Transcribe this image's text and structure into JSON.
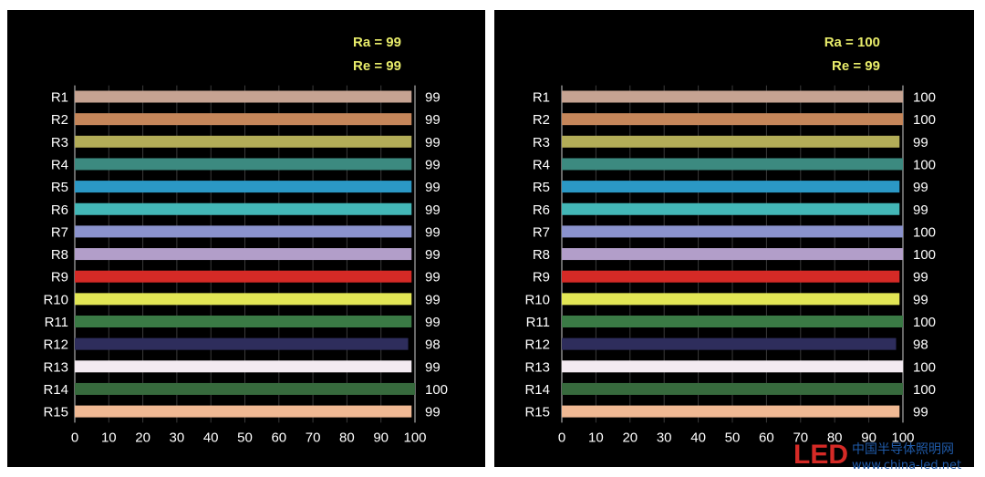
{
  "chart_data": [
    {
      "type": "bar",
      "orientation": "horizontal",
      "annotations": [
        "Ra = 99",
        "Re = 99"
      ],
      "categories": [
        "R1",
        "R2",
        "R3",
        "R4",
        "R5",
        "R6",
        "R7",
        "R8",
        "R9",
        "R10",
        "R11",
        "R12",
        "R13",
        "R14",
        "R15"
      ],
      "values": [
        99,
        99,
        99,
        99,
        99,
        99,
        99,
        99,
        99,
        99,
        99,
        98,
        99,
        100,
        99
      ],
      "xlim": [
        0,
        100
      ],
      "xticks": [
        "0",
        "10",
        "20",
        "30",
        "40",
        "50",
        "60",
        "70",
        "80",
        "90",
        "100"
      ],
      "grid": true
    },
    {
      "type": "bar",
      "orientation": "horizontal",
      "annotations": [
        "Ra = 100",
        "Re = 99"
      ],
      "categories": [
        "R1",
        "R2",
        "R3",
        "R4",
        "R5",
        "R6",
        "R7",
        "R8",
        "R9",
        "R10",
        "R11",
        "R12",
        "R13",
        "R14",
        "R15"
      ],
      "values": [
        100,
        100,
        99,
        100,
        99,
        99,
        100,
        100,
        99,
        99,
        100,
        98,
        100,
        100,
        99
      ],
      "xlim": [
        0,
        100
      ],
      "xticks": [
        "0",
        "10",
        "20",
        "30",
        "40",
        "50",
        "60",
        "70",
        "80",
        "90",
        "100"
      ],
      "grid": true
    }
  ],
  "colors": [
    "#c6a392",
    "#c5865a",
    "#b3ad58",
    "#3c8a80",
    "#2b98c5",
    "#43b7b7",
    "#8b93cd",
    "#b29ec9",
    "#d52a26",
    "#e2e655",
    "#3a7a45",
    "#2e2d5c",
    "#f3eaf1",
    "#376a3d",
    "#f0b994"
  ],
  "watermark": {
    "logo": "LED",
    "text": "中国半导体照明网",
    "url": "www.china-led.net"
  }
}
